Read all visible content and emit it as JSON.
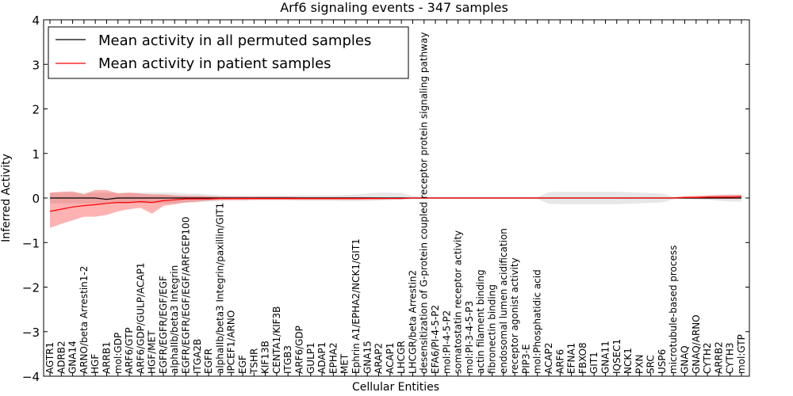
{
  "chart_data": {
    "type": "line",
    "title": "Arf6 signaling events - 347 samples",
    "xlabel": "Cellular Entities",
    "ylabel": "Inferred Activity",
    "ylim": [
      -4,
      4
    ],
    "yticks": [
      -4,
      -3,
      -2,
      -1,
      0,
      1,
      2,
      3,
      4
    ],
    "grid": false,
    "legend_position": "top-left",
    "categories": [
      "AGTR1",
      "ADRB2",
      "GNA14",
      "ARNO/beta Arrestin1-2",
      "HGF",
      "ARRB1",
      "mol:GDP",
      "ARF6/GTP",
      "ARF6/GDP/GULP/ACAP1",
      "HGF/MET",
      "EGFR/EGFR/EGF/EGF",
      "alphaIIb/beta3 Integrin",
      "EGFR/EGFR/EGF/EGF/ARFGEP100",
      "ITGA2B",
      "EGFR",
      "alphaIIb/beta3 Integrin/paxillin/GIT1",
      "IPCEF1/ARNO",
      "EGF",
      "TSHR",
      "KIF13B",
      "CENTA1/KIF3B",
      "ITGB3",
      "ARF6/GDP",
      "GULP1",
      "ADAP1",
      "EPHA2",
      "MET",
      "Ephrin A1/EPHA2/NCK1/GIT1",
      "GNA15",
      "ARAP2",
      "ACAP1",
      "LHCGR",
      "LHCGR/beta Arrestin2",
      "desensitization of G-protein coupled receptor protein signaling pathway",
      "EFA6/PI-4-5-P2",
      "mol:PI-4-5-P2",
      "somatostatin receptor activity",
      "mol:PI-3-4-5-P3",
      "actin filament binding",
      "fibronectin binding",
      "endosomal lumen acidification",
      "receptor agonist activity",
      "PIP3-E",
      "mol:Phosphatidic acid",
      "ACAP2",
      "ARF6",
      "EFNA1",
      "FBXO8",
      "GIT1",
      "GNA11",
      "IQSEC1",
      "NCK1",
      "PXN",
      "SRC",
      "USP6",
      "microtubule-based process",
      "GNAQ",
      "GNAQ/ARNO",
      "CYTH2",
      "ARRB2",
      "CYTH3",
      "mol:GTP"
    ],
    "series": [
      {
        "name": "Mean activity in all permuted samples",
        "color": "#000000",
        "values": [
          0.0,
          0.0,
          0.0,
          0.0,
          0.0,
          -0.03,
          0.0,
          0.0,
          0.0,
          0.0,
          0.0,
          0.0,
          0.0,
          0.0,
          0.0,
          0.0,
          0.0,
          0.0,
          0.0,
          0.0,
          0.0,
          0.0,
          0.0,
          0.0,
          0.0,
          0.0,
          0.0,
          0.0,
          0.0,
          0.0,
          0.0,
          0.0,
          0.0,
          0.0,
          0.0,
          0.0,
          0.0,
          0.0,
          0.0,
          0.0,
          0.0,
          0.0,
          0.0,
          0.0,
          0.0,
          0.0,
          0.0,
          0.0,
          0.0,
          0.0,
          0.0,
          0.0,
          0.0,
          0.0,
          0.0,
          0.0,
          0.0,
          0.0,
          0.0,
          0.0,
          0.0,
          0.0
        ],
        "band_lower": [
          -0.12,
          -0.12,
          -0.12,
          -0.12,
          -0.12,
          -0.12,
          -0.12,
          -0.12,
          -0.12,
          -0.12,
          -0.12,
          -0.12,
          -0.1,
          -0.1,
          -0.08,
          -0.06,
          -0.05,
          -0.05,
          -0.05,
          -0.05,
          -0.05,
          -0.05,
          -0.06,
          -0.06,
          -0.06,
          -0.06,
          -0.07,
          -0.07,
          -0.07,
          -0.06,
          -0.05,
          -0.04,
          -0.03,
          -0.02,
          -0.02,
          -0.02,
          -0.02,
          -0.02,
          -0.02,
          -0.02,
          -0.02,
          -0.02,
          -0.02,
          -0.02,
          -0.13,
          -0.14,
          -0.14,
          -0.14,
          -0.14,
          -0.14,
          -0.14,
          -0.13,
          -0.12,
          -0.11,
          -0.1,
          -0.03,
          -0.02,
          -0.03,
          -0.04,
          -0.06,
          -0.08,
          -0.08
        ],
        "band_upper": [
          0.12,
          0.12,
          0.12,
          0.12,
          0.12,
          0.12,
          0.12,
          0.12,
          0.12,
          0.12,
          0.12,
          0.12,
          0.1,
          0.1,
          0.08,
          0.06,
          0.05,
          0.05,
          0.05,
          0.05,
          0.05,
          0.05,
          0.06,
          0.06,
          0.06,
          0.06,
          0.07,
          0.08,
          0.1,
          0.12,
          0.12,
          0.11,
          0.05,
          0.02,
          0.02,
          0.02,
          0.02,
          0.02,
          0.02,
          0.02,
          0.02,
          0.02,
          0.02,
          0.02,
          0.13,
          0.14,
          0.14,
          0.14,
          0.14,
          0.14,
          0.14,
          0.13,
          0.12,
          0.11,
          0.1,
          0.03,
          0.02,
          0.03,
          0.04,
          0.06,
          0.08,
          0.08
        ]
      },
      {
        "name": "Mean activity in patient samples",
        "color": "#ff0000",
        "values": [
          -0.3,
          -0.25,
          -0.2,
          -0.17,
          -0.15,
          -0.12,
          -0.1,
          -0.1,
          -0.08,
          -0.1,
          -0.06,
          -0.04,
          -0.02,
          -0.02,
          -0.02,
          -0.01,
          -0.01,
          -0.01,
          -0.01,
          -0.01,
          -0.01,
          -0.01,
          -0.01,
          -0.01,
          -0.01,
          -0.01,
          -0.01,
          -0.01,
          -0.01,
          -0.01,
          -0.01,
          -0.01,
          0.0,
          0.0,
          0.0,
          0.0,
          0.0,
          0.0,
          0.0,
          0.0,
          0.0,
          0.0,
          0.0,
          0.0,
          0.0,
          0.0,
          0.0,
          0.0,
          0.0,
          0.0,
          0.0,
          0.0,
          0.0,
          0.0,
          0.0,
          0.0,
          0.01,
          0.01,
          0.02,
          0.02,
          0.02,
          0.03
        ],
        "band_lower": [
          -0.67,
          -0.58,
          -0.5,
          -0.42,
          -0.42,
          -0.38,
          -0.3,
          -0.25,
          -0.22,
          -0.35,
          -0.18,
          -0.14,
          -0.1,
          -0.08,
          -0.06,
          -0.05,
          -0.05,
          -0.05,
          -0.04,
          -0.04,
          -0.04,
          -0.04,
          -0.04,
          -0.04,
          -0.04,
          -0.04,
          -0.04,
          -0.04,
          -0.03,
          -0.03,
          -0.02,
          -0.02,
          -0.01,
          -0.01,
          -0.01,
          -0.01,
          -0.01,
          -0.01,
          -0.01,
          -0.01,
          -0.01,
          -0.01,
          -0.01,
          -0.01,
          -0.01,
          -0.01,
          -0.01,
          -0.01,
          -0.01,
          -0.01,
          -0.01,
          -0.01,
          -0.01,
          -0.01,
          -0.01,
          -0.01,
          -0.01,
          -0.02,
          -0.02,
          -0.02,
          -0.02,
          -0.02
        ],
        "band_upper": [
          0.12,
          0.14,
          0.15,
          0.08,
          0.18,
          0.18,
          0.1,
          0.12,
          0.1,
          0.08,
          0.08,
          0.06,
          0.05,
          0.05,
          0.04,
          0.03,
          0.03,
          0.03,
          0.03,
          0.03,
          0.03,
          0.03,
          0.02,
          0.02,
          0.02,
          0.02,
          0.02,
          0.02,
          0.02,
          0.01,
          0.01,
          0.01,
          0.01,
          0.01,
          0.01,
          0.01,
          0.01,
          0.01,
          0.01,
          0.01,
          0.01,
          0.01,
          0.01,
          0.01,
          0.01,
          0.01,
          0.01,
          0.01,
          0.01,
          0.01,
          0.01,
          0.01,
          0.01,
          0.01,
          0.01,
          0.01,
          0.04,
          0.05,
          0.06,
          0.07,
          0.07,
          0.07
        ]
      }
    ]
  }
}
